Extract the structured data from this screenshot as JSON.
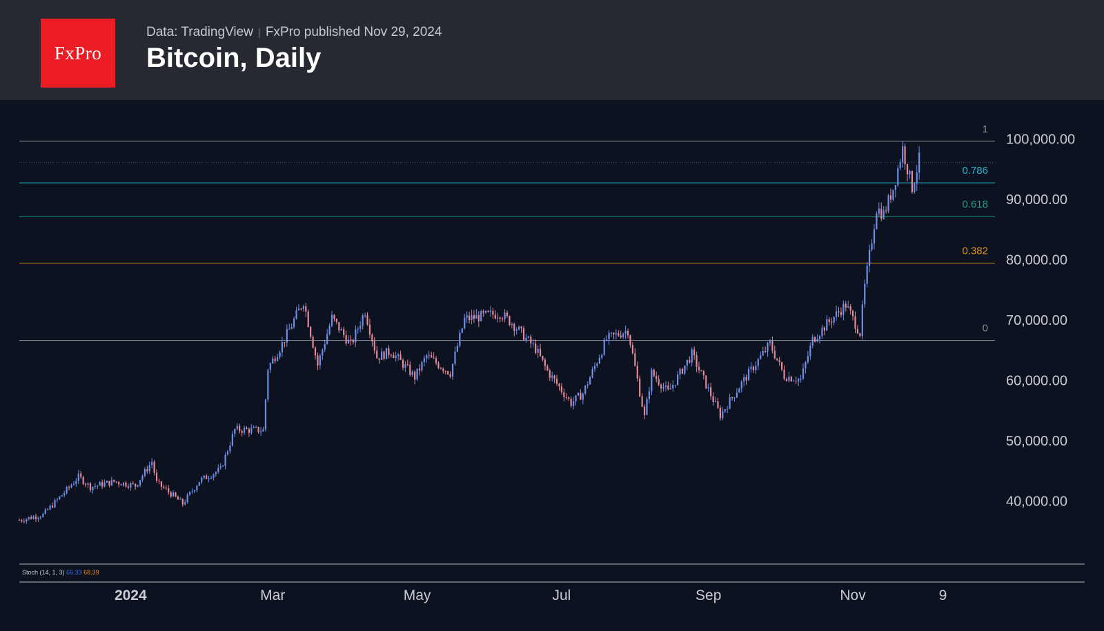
{
  "header": {
    "logo_text": "FxPro",
    "source": "Data: TradingView",
    "published": "FxPro published Nov 29, 2024",
    "title": "Bitcoin, Daily"
  },
  "colors": {
    "background": "#0d1220",
    "header_bg": "#262932",
    "logo_bg": "#ec1c24",
    "candle_up": "#6f8fe8",
    "candle_down": "#e58a96",
    "fib_1": "#8a8e98",
    "fib_0786": "#22b5c9",
    "fib_0618": "#1f9e86",
    "fib_0382": "#e0931e",
    "fib_0": "#8a8e98",
    "stoch_k": "#3d6fe0",
    "stoch_d": "#f08a1d"
  },
  "chart_data": {
    "type": "candlestick",
    "title": "Bitcoin, Daily",
    "ylim": [
      31000,
      103000
    ],
    "y_ticks": [
      {
        "value": 100000,
        "label": "100,000.00"
      },
      {
        "value": 90000,
        "label": "90,000.00"
      },
      {
        "value": 80000,
        "label": "80,000.00"
      },
      {
        "value": 70000,
        "label": "70,000.00"
      },
      {
        "value": 60000,
        "label": "60,000.00"
      },
      {
        "value": 50000,
        "label": "50,000.00"
      },
      {
        "value": 40000,
        "label": "40,000.00"
      }
    ],
    "x_range": [
      "2023-11-15",
      "2024-12-31"
    ],
    "x_ticks": [
      {
        "date": "2024-01-01",
        "label": "2024",
        "bold": true
      },
      {
        "date": "2024-03-01",
        "label": "Mar",
        "bold": false
      },
      {
        "date": "2024-05-01",
        "label": "May",
        "bold": false
      },
      {
        "date": "2024-07-01",
        "label": "Jul",
        "bold": false
      },
      {
        "date": "2024-09-01",
        "label": "Sep",
        "bold": false
      },
      {
        "date": "2024-11-01",
        "label": "Nov",
        "bold": false
      },
      {
        "date": "2024-12-09",
        "label": "9",
        "bold": false
      }
    ],
    "price_anchors": [
      [
        "2023-11-15",
        36800
      ],
      [
        "2023-11-25",
        37700
      ],
      [
        "2023-12-05",
        41800
      ],
      [
        "2023-12-10",
        44000
      ],
      [
        "2023-12-15",
        42300
      ],
      [
        "2023-12-25",
        43200
      ],
      [
        "2024-01-03",
        42500
      ],
      [
        "2024-01-10",
        46500
      ],
      [
        "2024-01-12",
        43000
      ],
      [
        "2024-01-18",
        41200
      ],
      [
        "2024-01-23",
        39500
      ],
      [
        "2024-01-30",
        43300
      ],
      [
        "2024-02-08",
        45200
      ],
      [
        "2024-02-14",
        51800
      ],
      [
        "2024-02-26",
        51700
      ],
      [
        "2024-02-28",
        62000
      ],
      [
        "2024-03-05",
        66000
      ],
      [
        "2024-03-14",
        73100
      ],
      [
        "2024-03-20",
        62500
      ],
      [
        "2024-03-26",
        70300
      ],
      [
        "2024-04-03",
        65800
      ],
      [
        "2024-04-09",
        71500
      ],
      [
        "2024-04-14",
        63800
      ],
      [
        "2024-04-20",
        64800
      ],
      [
        "2024-04-30",
        60500
      ],
      [
        "2024-05-05",
        64000
      ],
      [
        "2024-05-15",
        61200
      ],
      [
        "2024-05-21",
        70100
      ],
      [
        "2024-06-05",
        71100
      ],
      [
        "2024-06-10",
        69500
      ],
      [
        "2024-06-20",
        65200
      ],
      [
        "2024-06-25",
        61500
      ],
      [
        "2024-07-05",
        56200
      ],
      [
        "2024-07-10",
        57800
      ],
      [
        "2024-07-20",
        66800
      ],
      [
        "2024-07-29",
        68300
      ],
      [
        "2024-08-05",
        53900
      ],
      [
        "2024-08-08",
        61200
      ],
      [
        "2024-08-15",
        58000
      ],
      [
        "2024-08-25",
        64300
      ],
      [
        "2024-09-06",
        54200
      ],
      [
        "2024-09-15",
        59500
      ],
      [
        "2024-09-27",
        66000
      ],
      [
        "2024-10-03",
        60700
      ],
      [
        "2024-10-10",
        60100
      ],
      [
        "2024-10-15",
        66700
      ],
      [
        "2024-10-21",
        69300
      ],
      [
        "2024-10-29",
        72500
      ],
      [
        "2024-11-04",
        67800
      ],
      [
        "2024-11-06",
        75500
      ],
      [
        "2024-11-11",
        88500
      ],
      [
        "2024-11-14",
        87500
      ],
      [
        "2024-11-18",
        91800
      ],
      [
        "2024-11-22",
        98400
      ],
      [
        "2024-11-26",
        91900
      ],
      [
        "2024-11-29",
        96500
      ]
    ],
    "fib_levels": [
      {
        "label": "1",
        "price": 99600,
        "style": "solid"
      },
      {
        "label": "",
        "price": 96100,
        "style": "dotted"
      },
      {
        "label": "0.786",
        "price": 92700,
        "style": "solid"
      },
      {
        "label": "0.618",
        "price": 87100,
        "style": "solid"
      },
      {
        "label": "0.382",
        "price": 79400,
        "style": "solid"
      },
      {
        "label": "0",
        "price": 66600,
        "style": "solid"
      }
    ],
    "indicator": {
      "label": "Stoch (14, 1, 3)",
      "k_value": "66.33",
      "d_value": "68.39"
    }
  }
}
